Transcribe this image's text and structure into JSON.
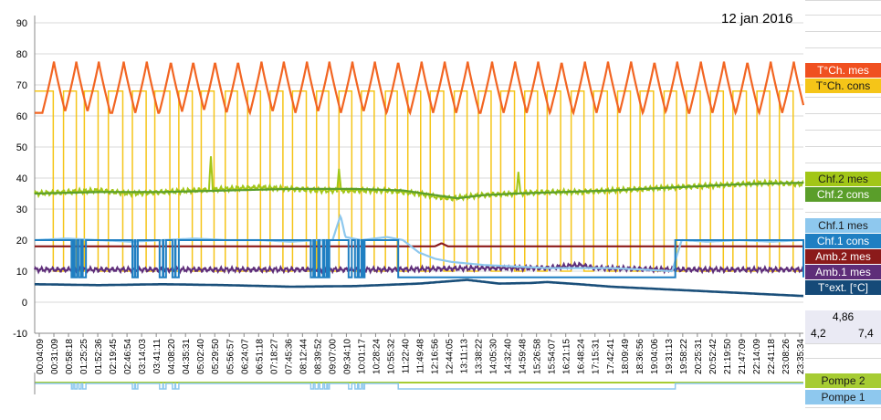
{
  "header": {
    "date": "12 jan 2016"
  },
  "colors": {
    "tch_mes": "#f26522",
    "tch_cons": "#f5c518",
    "chf2_mes": "#a2c617",
    "chf2_cons": "#5a9e2a",
    "chf1_mes": "#8ec8ee",
    "chf1_cons": "#1f7fc2",
    "amb2_mes": "#8b1a1a",
    "amb1_mes": "#5e2d79",
    "text": "#1a4f7a",
    "pompe2": "#a6cc33",
    "pompe1": "#8ec8ee"
  },
  "legend": [
    {
      "label": "T°Ch. mes",
      "color": "#f05020",
      "text_color": "#ffffff",
      "key": "tch_mes"
    },
    {
      "label": "T°Ch. cons",
      "color": "#f5c518",
      "text_color": "#1a1a1a",
      "key": "tch_cons"
    },
    {
      "label": "Chf.2 mes",
      "color": "#a2c617",
      "text_color": "#1a1a1a",
      "key": "chf2_mes"
    },
    {
      "label": "Chf.2 cons",
      "color": "#5a9e2a",
      "text_color": "#ffffff",
      "key": "chf2_cons"
    },
    {
      "label": "Chf.1 mes",
      "color": "#8ec8ee",
      "text_color": "#1a1a1a",
      "key": "chf1_mes"
    },
    {
      "label": "Chf.1 cons",
      "color": "#1f7fc2",
      "text_color": "#ffffff",
      "key": "chf1_cons"
    },
    {
      "label": "Amb.2 mes",
      "color": "#8b1a1a",
      "text_color": "#ffffff",
      "key": "amb2_mes"
    },
    {
      "label": "Amb.1 mes",
      "color": "#5e2d79",
      "text_color": "#ffffff",
      "key": "amb1_mes"
    },
    {
      "label": "T°ext. [°C]",
      "color": "#154a78",
      "text_color": "#ffffff",
      "key": "text"
    }
  ],
  "legend_bottom": [
    {
      "label": "Pompe 2",
      "color": "#a6cc33",
      "text_color": "#1a1a1a",
      "key": "pompe2"
    },
    {
      "label": "Pompe 1",
      "color": "#8ec8ee",
      "text_color": "#1a1a1a",
      "key": "pompe1"
    }
  ],
  "info": {
    "value_center": "4,86",
    "value_left": "4,2",
    "value_right": "7,4"
  },
  "chart_data": {
    "type": "line",
    "title": "12 jan 2016",
    "ylim": [
      -10,
      90
    ],
    "yticks": [
      -10,
      0,
      10,
      20,
      30,
      40,
      50,
      60,
      70,
      80,
      90
    ],
    "grid": true,
    "legend_position": "right",
    "x_range_hours": [
      0,
      24
    ],
    "x_ticks": [
      "00:04:09",
      "00:31:09",
      "00:58:18",
      "01:25:25",
      "01:52:36",
      "02:19:45",
      "02:46:54",
      "03:14:03",
      "03:41:11",
      "04:08:20",
      "04:35:31",
      "05:02:40",
      "05:29:50",
      "05:56:57",
      "06:24:07",
      "06:51:18",
      "07:18:27",
      "07:45:36",
      "08:12:44",
      "08:39:52",
      "09:07:00",
      "09:34:10",
      "10:01:17",
      "10:28:24",
      "10:55:32",
      "11:22:40",
      "11:49:48",
      "12:16:56",
      "12:44:05",
      "13:11:13",
      "13:38:22",
      "14:05:30",
      "14:32:40",
      "14:59:48",
      "15:26:58",
      "15:54:07",
      "16:21:15",
      "16:48:24",
      "17:15:31",
      "17:42:41",
      "18:09:49",
      "18:36:56",
      "19:04:06",
      "19:31:13",
      "19:58:22",
      "20:25:31",
      "20:52:42",
      "21:19:50",
      "21:47:09",
      "22:14:09",
      "22:41:18",
      "23:08:26",
      "23:35:34"
    ],
    "series": [
      {
        "name": "T°Ch. mes",
        "key": "tch_mes",
        "kind": "sawtooth",
        "peaks": [
          0.6,
          1.3,
          2.0,
          2.78,
          3.5,
          4.25,
          4.95,
          5.63,
          6.35,
          7.08,
          7.78,
          8.5,
          9.2,
          9.92,
          10.62,
          11.35,
          12.08,
          12.8,
          13.52,
          14.28,
          15.0,
          15.72,
          16.45,
          17.18,
          17.9,
          18.62,
          19.35,
          20.06,
          20.8,
          21.52,
          22.25,
          22.98,
          23.7
        ],
        "low": 61,
        "high": 77.5
      },
      {
        "name": "T°Ch. cons",
        "key": "tch_cons",
        "kind": "square",
        "high": 68,
        "low": 10,
        "high_intervals": [
          [
            0,
            0.58
          ],
          [
            0.9,
            1.3
          ],
          [
            1.55,
            1.98
          ],
          [
            2.3,
            2.75
          ],
          [
            3.05,
            3.48
          ],
          [
            3.75,
            4.22
          ],
          [
            4.5,
            4.92
          ],
          [
            5.2,
            5.6
          ],
          [
            5.95,
            6.33
          ],
          [
            6.65,
            7.05
          ],
          [
            7.35,
            7.75
          ],
          [
            8.05,
            8.48
          ],
          [
            8.8,
            9.18
          ],
          [
            9.5,
            9.9
          ],
          [
            10.2,
            10.6
          ],
          [
            10.95,
            11.32
          ],
          [
            11.65,
            12.05
          ],
          [
            12.35,
            12.77
          ],
          [
            13.1,
            13.5
          ],
          [
            13.85,
            14.25
          ],
          [
            14.55,
            14.98
          ],
          [
            15.3,
            15.7
          ],
          [
            16.0,
            16.42
          ],
          [
            16.75,
            17.15
          ],
          [
            17.45,
            17.88
          ],
          [
            18.2,
            18.6
          ],
          [
            18.9,
            19.32
          ],
          [
            19.65,
            20.04
          ],
          [
            20.35,
            20.78
          ],
          [
            21.1,
            21.5
          ],
          [
            21.8,
            22.22
          ],
          [
            22.55,
            22.95
          ],
          [
            23.25,
            23.68
          ]
        ]
      },
      {
        "name": "Chf.2 mes",
        "key": "chf2_mes",
        "kind": "noisy",
        "points": [
          [
            0,
            35
          ],
          [
            1,
            35.5
          ],
          [
            2,
            36
          ],
          [
            3,
            35
          ],
          [
            4,
            35.5
          ],
          [
            5,
            36
          ],
          [
            6,
            36.5
          ],
          [
            7,
            37
          ],
          [
            8,
            36.5
          ],
          [
            9,
            36
          ],
          [
            10,
            36
          ],
          [
            11,
            36
          ],
          [
            12,
            35
          ],
          [
            12.5,
            34
          ],
          [
            13,
            33.5
          ],
          [
            14,
            34.5
          ],
          [
            15,
            35
          ],
          [
            16,
            35.5
          ],
          [
            17,
            35.5
          ],
          [
            18,
            36
          ],
          [
            19,
            36.5
          ],
          [
            20,
            37
          ],
          [
            21,
            37.5
          ],
          [
            22,
            38
          ],
          [
            23,
            38.5
          ],
          [
            24,
            38
          ]
        ],
        "spikes": [
          [
            5.5,
            47
          ],
          [
            9.5,
            43
          ],
          [
            15.1,
            42
          ]
        ]
      },
      {
        "name": "Chf.2 cons",
        "key": "chf2_cons",
        "kind": "smooth",
        "points": [
          [
            0,
            35
          ],
          [
            2,
            35.5
          ],
          [
            4,
            35.5
          ],
          [
            6,
            36
          ],
          [
            8,
            36.5
          ],
          [
            10,
            36.5
          ],
          [
            11.5,
            36
          ],
          [
            12.5,
            34.5
          ],
          [
            13.2,
            33.5
          ],
          [
            14,
            34.5
          ],
          [
            15,
            35
          ],
          [
            16.5,
            35.5
          ],
          [
            18,
            36
          ],
          [
            20,
            37
          ],
          [
            22,
            38
          ],
          [
            24,
            38.5
          ]
        ]
      },
      {
        "name": "Chf.1 mes",
        "key": "chf1_mes",
        "kind": "smooth",
        "points": [
          [
            0,
            20
          ],
          [
            1,
            20.5
          ],
          [
            2,
            20
          ],
          [
            3,
            19.5
          ],
          [
            4,
            20
          ],
          [
            5,
            20.5
          ],
          [
            6,
            20
          ],
          [
            7,
            20
          ],
          [
            8,
            19.5
          ],
          [
            8.8,
            20
          ],
          [
            9.3,
            20
          ],
          [
            9.55,
            28
          ],
          [
            9.7,
            21
          ],
          [
            10.2,
            20
          ],
          [
            11,
            21
          ],
          [
            11.5,
            20
          ],
          [
            12,
            16
          ],
          [
            12.5,
            14
          ],
          [
            13,
            13
          ],
          [
            14,
            12
          ],
          [
            15,
            11.5
          ],
          [
            16,
            11
          ],
          [
            17,
            11
          ],
          [
            18,
            11
          ],
          [
            19,
            10.5
          ],
          [
            19.9,
            10
          ],
          [
            20.2,
            20
          ],
          [
            21,
            19.5
          ],
          [
            22,
            20
          ],
          [
            23,
            19.5
          ],
          [
            24,
            20
          ]
        ]
      },
      {
        "name": "Chf.1 cons",
        "key": "chf1_cons",
        "kind": "square",
        "high": 20,
        "low": 8,
        "high_intervals": [
          [
            0,
            1.15
          ],
          [
            1.2,
            1.25
          ],
          [
            1.32,
            1.38
          ],
          [
            1.45,
            1.5
          ],
          [
            1.6,
            3.05
          ],
          [
            3.12,
            3.15
          ],
          [
            3.22,
            3.9
          ],
          [
            4.0,
            4.02
          ],
          [
            4.1,
            4.3
          ],
          [
            4.38,
            4.4
          ],
          [
            4.5,
            8.62
          ],
          [
            8.7,
            8.75
          ],
          [
            8.85,
            8.9
          ],
          [
            9.0,
            9.05
          ],
          [
            9.12,
            9.15
          ],
          [
            9.2,
            9.8
          ],
          [
            9.9,
            10.0
          ],
          [
            10.08,
            10.12
          ],
          [
            10.2,
            10.25
          ],
          [
            10.3,
            11.35
          ],
          [
            20.0,
            24
          ]
        ]
      },
      {
        "name": "Amb.2 mes",
        "key": "amb2_mes",
        "kind": "smooth",
        "points": [
          [
            0,
            18
          ],
          [
            12.5,
            18
          ],
          [
            12.7,
            19
          ],
          [
            12.9,
            18
          ],
          [
            24,
            18
          ]
        ]
      },
      {
        "name": "Amb.1 mes",
        "key": "amb1_mes",
        "kind": "noisy",
        "points": [
          [
            0,
            10.5
          ],
          [
            4,
            10.5
          ],
          [
            8,
            10.5
          ],
          [
            11,
            10.5
          ],
          [
            14,
            11
          ],
          [
            16,
            11
          ],
          [
            17,
            12
          ],
          [
            17.5,
            11
          ],
          [
            20,
            10.5
          ],
          [
            24,
            10.5
          ]
        ],
        "spikes": []
      },
      {
        "name": "T°ext. [°C]",
        "key": "text",
        "kind": "smooth",
        "points": [
          [
            0,
            5.8
          ],
          [
            2,
            5.5
          ],
          [
            4,
            5.8
          ],
          [
            6,
            5.5
          ],
          [
            8,
            5
          ],
          [
            10,
            5.2
          ],
          [
            12,
            6
          ],
          [
            13.5,
            7.2
          ],
          [
            14.5,
            6
          ],
          [
            15.5,
            6.2
          ],
          [
            16,
            6.5
          ],
          [
            17,
            5.8
          ],
          [
            18,
            5
          ],
          [
            20,
            4
          ],
          [
            22,
            3
          ],
          [
            24,
            2
          ]
        ]
      }
    ],
    "pumps": {
      "pompe2": {
        "name": "Pompe 2",
        "always_on": true
      },
      "pompe1": {
        "name": "Pompe 1",
        "on_intervals": [
          [
            1.15,
            1.2
          ],
          [
            1.25,
            1.32
          ],
          [
            1.38,
            1.45
          ],
          [
            1.5,
            1.6
          ],
          [
            3.05,
            3.12
          ],
          [
            3.15,
            3.22
          ],
          [
            3.9,
            4.0
          ],
          [
            4.02,
            4.1
          ],
          [
            4.3,
            4.38
          ],
          [
            4.4,
            4.5
          ],
          [
            8.62,
            8.7
          ],
          [
            8.75,
            8.85
          ],
          [
            8.9,
            9.0
          ],
          [
            9.05,
            9.12
          ],
          [
            9.15,
            9.2
          ],
          [
            9.8,
            9.9
          ],
          [
            10.0,
            10.08
          ],
          [
            10.12,
            10.2
          ],
          [
            10.25,
            10.3
          ],
          [
            11.35,
            20.0
          ]
        ]
      }
    }
  }
}
